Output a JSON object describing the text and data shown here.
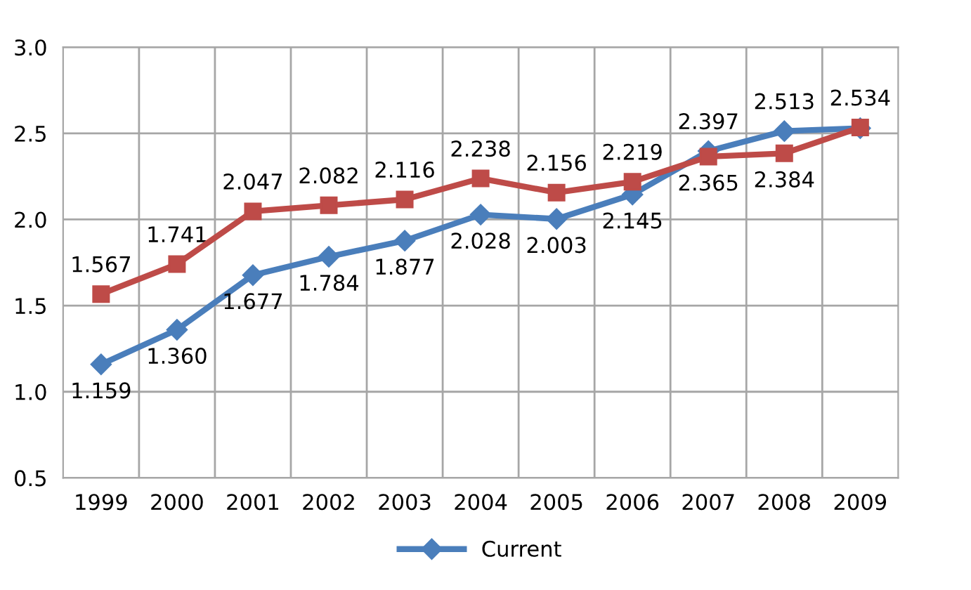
{
  "chart_data": {
    "type": "line",
    "categories": [
      "1999",
      "2000",
      "2001",
      "2002",
      "2003",
      "2004",
      "2005",
      "2006",
      "2007",
      "2008",
      "2009"
    ],
    "series": [
      {
        "name": "Current",
        "color": "#4a7ebb",
        "marker": "diamond",
        "values": [
          1.159,
          1.36,
          1.677,
          1.784,
          1.877,
          2.028,
          2.003,
          2.145,
          2.397,
          2.513,
          2.53
        ],
        "value_labels": [
          "1.159",
          "1.360",
          "1.677",
          "1.784",
          "1.877",
          "2.028",
          "2.003",
          "2.145",
          "2.397",
          "2.513",
          null
        ]
      },
      {
        "color": "#be4b48",
        "marker": "square",
        "values": [
          1.567,
          1.741,
          2.047,
          2.082,
          2.116,
          2.238,
          2.156,
          2.219,
          2.365,
          2.384,
          2.534
        ],
        "value_labels": [
          "1.567",
          "1.741",
          "2.047",
          "2.082",
          "2.116",
          "2.238",
          "2.156",
          "2.219",
          "2.365",
          "2.384",
          "2.534"
        ]
      }
    ],
    "ylim": [
      0.5,
      3.0
    ],
    "yticks": [
      {
        "value": 0.5,
        "label": "0.5"
      },
      {
        "value": 1.0,
        "label": "1.0"
      },
      {
        "value": 1.5,
        "label": "1.5"
      },
      {
        "value": 2.0,
        "label": "2.0"
      },
      {
        "value": 2.5,
        "label": "2.5"
      },
      {
        "value": 3.0,
        "label": "3.0"
      }
    ],
    "grid": true,
    "legend": "bottom",
    "line_style": "solid"
  }
}
